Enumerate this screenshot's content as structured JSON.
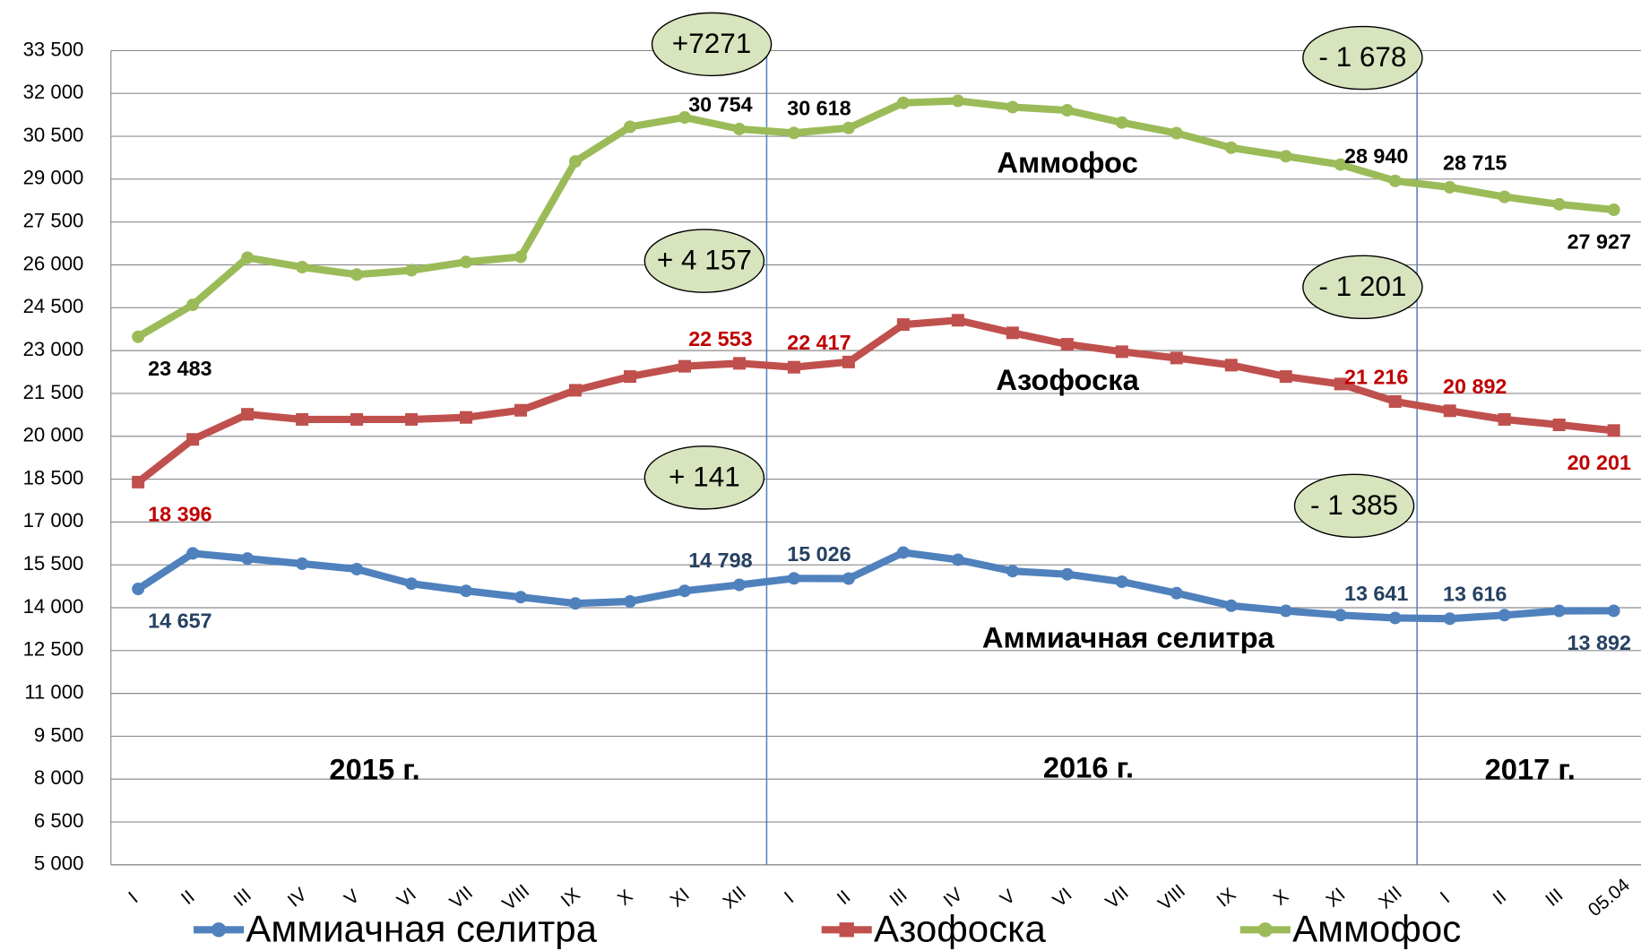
{
  "chart_data": {
    "type": "line",
    "categories": [
      "I",
      "II",
      "III",
      "IV",
      "V",
      "VI",
      "VII",
      "VIII",
      "IX",
      "X",
      "XI",
      "XII",
      "I",
      "II",
      "III",
      "IV",
      "V",
      "VI",
      "VII",
      "VIII",
      "IX",
      "X",
      "XI",
      "XII",
      "I",
      "II",
      "III",
      "05.04"
    ],
    "ylim": [
      5000,
      33500
    ],
    "yticks": [
      {
        "value": 5000,
        "label": "5 000"
      },
      {
        "value": 6500,
        "label": "6 500"
      },
      {
        "value": 8000,
        "label": "8 000"
      },
      {
        "value": 9500,
        "label": "9 500"
      },
      {
        "value": 11000,
        "label": "11 000"
      },
      {
        "value": 12500,
        "label": "12 500"
      },
      {
        "value": 14000,
        "label": "14 000"
      },
      {
        "value": 15500,
        "label": "15 500"
      },
      {
        "value": 17000,
        "label": "17 000"
      },
      {
        "value": 18500,
        "label": "18 500"
      },
      {
        "value": 20000,
        "label": "20 000"
      },
      {
        "value": 21500,
        "label": "21 500"
      },
      {
        "value": 23000,
        "label": "23 000"
      },
      {
        "value": 24500,
        "label": "24 500"
      },
      {
        "value": 26000,
        "label": "26 000"
      },
      {
        "value": 27500,
        "label": "27 500"
      },
      {
        "value": 29000,
        "label": "29 000"
      },
      {
        "value": 30500,
        "label": "30 500"
      },
      {
        "value": 32000,
        "label": "32 000"
      },
      {
        "value": 33500,
        "label": "33 500"
      }
    ],
    "grid": true,
    "legend": "bottom",
    "series": [
      {
        "name": "Аммиачная селитра",
        "color": "#4f81bd",
        "label_color": "#254061",
        "marker": "circle",
        "values": [
          14657,
          15900,
          15720,
          15540,
          15350,
          14840,
          14590,
          14370,
          14150,
          14220,
          14590,
          14798,
          15026,
          15020,
          15930,
          15680,
          15280,
          15170,
          14910,
          14510,
          14070,
          13890,
          13740,
          13641,
          13616,
          13740,
          13890,
          13892
        ],
        "value_labels": [
          "14 657",
          null,
          null,
          null,
          null,
          null,
          null,
          null,
          null,
          null,
          null,
          "14 798",
          "15 026",
          null,
          null,
          null,
          null,
          null,
          null,
          null,
          null,
          null,
          null,
          "13 641",
          "13 616",
          null,
          null,
          "13 892"
        ]
      },
      {
        "name": "Азофоска",
        "color": "#c0504d",
        "label_color": "#c00000",
        "marker": "square",
        "values": [
          18396,
          19890,
          20770,
          20590,
          20590,
          20590,
          20660,
          20910,
          21610,
          22090,
          22450,
          22553,
          22417,
          22600,
          23910,
          24060,
          23620,
          23220,
          22960,
          22740,
          22490,
          22090,
          21830,
          21216,
          20892,
          20590,
          20400,
          20201
        ],
        "value_labels": [
          "18 396",
          null,
          null,
          null,
          null,
          null,
          null,
          null,
          null,
          null,
          null,
          "22 553",
          "22 417",
          null,
          null,
          null,
          null,
          null,
          null,
          null,
          null,
          null,
          null,
          "21 216",
          "20 892",
          null,
          null,
          "20 201"
        ]
      },
      {
        "name": "Аммофос",
        "color": "#9bbb59",
        "label_color": "#000000",
        "marker": "circle",
        "values": [
          23483,
          24600,
          26250,
          25920,
          25660,
          25810,
          26100,
          26280,
          29620,
          30830,
          31160,
          30754,
          30618,
          30790,
          31670,
          31740,
          31520,
          31410,
          30980,
          30610,
          30100,
          29800,
          29510,
          28940,
          28715,
          28380,
          28120,
          27927
        ],
        "value_labels": [
          "23 483",
          null,
          null,
          null,
          null,
          null,
          null,
          null,
          null,
          null,
          null,
          "30 754",
          "30 618",
          null,
          null,
          null,
          null,
          null,
          null,
          null,
          null,
          null,
          null,
          "28 940",
          "28 715",
          null,
          null,
          "27 927"
        ]
      }
    ],
    "annotations": [
      "+7271",
      "- 1 678",
      "+ 4 157",
      "- 1 201",
      "+ 141",
      "- 1 385"
    ],
    "series_labels": [
      "Аммиачная селитра",
      "Азофоска",
      "Аммофос"
    ],
    "period_labels": [
      "2015 г.",
      "2016 г.",
      "2017 г."
    ]
  }
}
